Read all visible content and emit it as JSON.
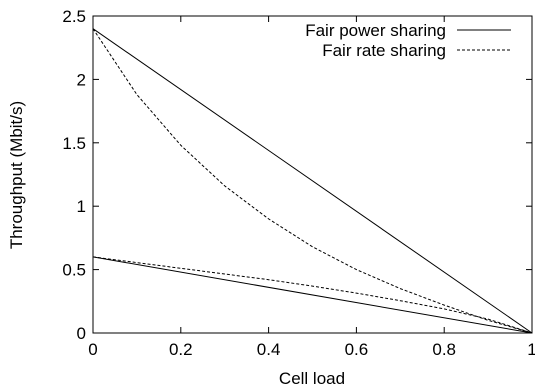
{
  "chart_data": {
    "type": "line",
    "xlabel": "Cell load",
    "ylabel": "Throughput (Mbit/s)",
    "xlim": [
      0,
      1
    ],
    "ylim": [
      0,
      2.5
    ],
    "x_ticks": [
      "0",
      "0.2",
      "0.4",
      "0.6",
      "0.8",
      "1"
    ],
    "y_ticks": [
      "0",
      "0.5",
      "1",
      "1.5",
      "2",
      "2.5"
    ],
    "grid": false,
    "legend_position": "top-right",
    "series": [
      {
        "name": "Fair power sharing",
        "style": "solid",
        "color": "#000000",
        "x": [
          0,
          1
        ],
        "y": [
          2.4,
          0
        ]
      },
      {
        "name": "Fair rate sharing",
        "style": "dashed",
        "color": "#000000",
        "x": [
          0,
          0.1,
          0.2,
          0.3,
          0.4,
          0.5,
          0.6,
          0.7,
          0.8,
          0.9,
          1.0
        ],
        "y": [
          2.4,
          1.88,
          1.48,
          1.16,
          0.9,
          0.68,
          0.5,
          0.35,
          0.22,
          0.1,
          0
        ]
      },
      {
        "style": "solid",
        "color": "#000000",
        "x": [
          0,
          1
        ],
        "y": [
          0.6,
          0
        ]
      },
      {
        "style": "dashed",
        "color": "#000000",
        "x": [
          0,
          0.1,
          0.2,
          0.3,
          0.4,
          0.5,
          0.6,
          0.7,
          0.8,
          0.9,
          1.0
        ],
        "y": [
          0.6,
          0.555,
          0.51,
          0.465,
          0.42,
          0.37,
          0.315,
          0.255,
          0.19,
          0.11,
          0
        ]
      }
    ]
  }
}
